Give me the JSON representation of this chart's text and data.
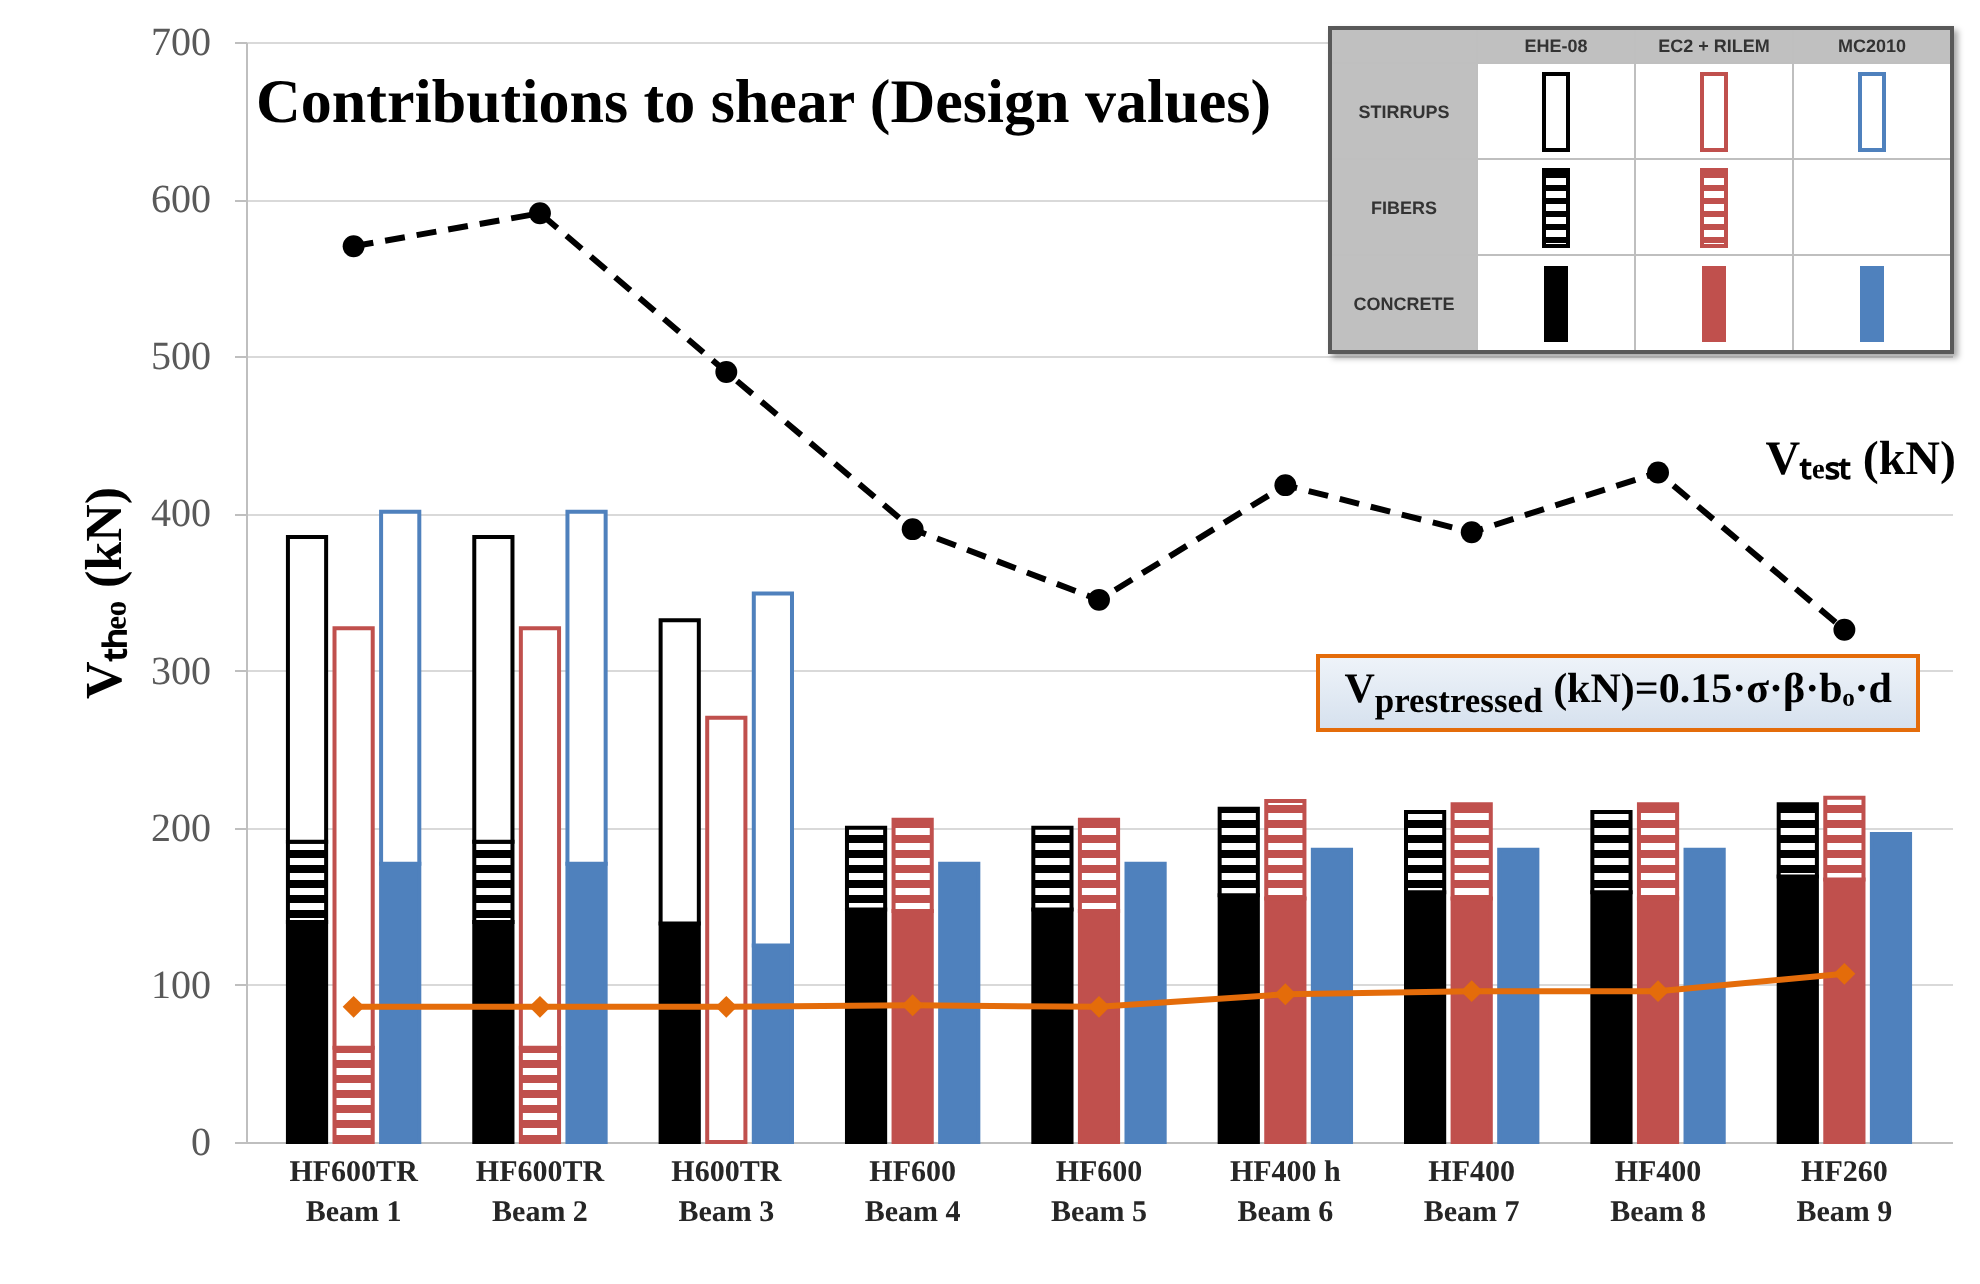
{
  "chart_data": {
    "type": "bar",
    "title": "Contributions to shear (Design values)",
    "ylabel": "Vₜₕₑₒ (kN)",
    "categories": [
      null,
      "HF600TR\nBeam 1",
      null,
      null,
      null,
      "HF600TR\nBeam 2",
      null,
      null,
      null,
      "H600TR\nBeam 3",
      null,
      null,
      null,
      "HF600\nBeam 4",
      null,
      null,
      null,
      "HF600\nBeam 5",
      null,
      null,
      null,
      "HF400 h\nBeam 6",
      null,
      null,
      null,
      "HF400\nBeam 7",
      null,
      null,
      null,
      "HF400\nBeam 8",
      null,
      null,
      null,
      "HF260\nBeam 9",
      null
    ],
    "stacked": true,
    "series": [
      {
        "colors": [
          "#000000",
          null,
          "#4f81bd",
          null,
          "#000000",
          null,
          "#4f81bd",
          null,
          "#000000",
          null,
          "#4f81bd",
          null,
          "#000000",
          "#c0504d",
          "#4f81bd",
          null,
          "#000000",
          "#c0504d",
          "#4f81bd",
          null,
          "#000000",
          "#c0504d",
          "#4f81bd",
          null,
          "#000000",
          "#c0504d",
          "#4f81bd",
          null,
          "#000000",
          "#c0504d",
          "#4f81bd",
          null,
          "#000000",
          "#c0504d",
          "#4f81bd"
        ],
        "values": [
          140,
          null,
          177,
          null,
          140,
          null,
          177,
          null,
          139,
          null,
          125,
          null,
          148,
          147,
          177,
          null,
          148,
          147,
          177,
          null,
          157,
          155,
          186,
          null,
          159,
          155,
          186,
          null,
          159,
          155,
          186,
          null,
          169,
          167,
          196
        ]
      },
      {
        "colors": [
          "#000000",
          "#c0504d",
          null,
          null,
          "#000000",
          "#c0504d",
          null,
          null,
          null,
          null,
          null,
          null,
          "#000000",
          "#c0504d",
          null,
          null,
          "#000000",
          "#c0504d",
          null,
          null,
          "#000000",
          "#c0504d",
          null,
          null,
          "#000000",
          "#c0504d",
          null,
          null,
          "#000000",
          "#c0504d",
          null,
          null,
          "#000000",
          "#c0504d",
          null
        ],
        "values": [
          51,
          60,
          null,
          null,
          51,
          60,
          null,
          null,
          null,
          null,
          null,
          null,
          52,
          58,
          null,
          null,
          52,
          58,
          null,
          null,
          55,
          62,
          null,
          null,
          51,
          60,
          null,
          null,
          51,
          60,
          null,
          null,
          46,
          52,
          null
        ]
      },
      {
        "colors": [
          "#000000",
          "#c0504d",
          "#4f81bd",
          null,
          "#000000",
          "#c0504d",
          "#4f81bd",
          null,
          "#000000",
          "#c0504d",
          "#4f81bd",
          null,
          null,
          null,
          null,
          null,
          null,
          null,
          null,
          null,
          null,
          null,
          null,
          null,
          null,
          null,
          null,
          null,
          null,
          null,
          null,
          null,
          null,
          null,
          null
        ],
        "values": [
          194,
          267,
          224,
          null,
          194,
          267,
          224,
          null,
          193,
          270,
          224,
          null,
          null,
          null,
          null,
          null,
          null,
          null,
          null,
          null,
          null,
          null,
          null,
          null,
          null,
          null,
          null,
          null,
          null,
          null,
          null,
          null,
          null,
          null,
          null
        ]
      },
      {
        "name": "Vₜₑₛₜ (kN)",
        "type": "line",
        "color": "#000000",
        "marker": "circle",
        "line_style": "dashed",
        "values": [
          null,
          570,
          null,
          null,
          null,
          591,
          null,
          null,
          null,
          490,
          null,
          null,
          null,
          390,
          null,
          null,
          null,
          345,
          null,
          null,
          null,
          418,
          null,
          null,
          null,
          388,
          null,
          null,
          null,
          426,
          null,
          null,
          null,
          326,
          null
        ]
      },
      {
        "name": "V$_{prestressed}$ (kN)=0.15·σ·β·bₒ·d",
        "type": "line",
        "color": "#e46c0a",
        "marker": "diamond",
        "line_style": "solid",
        "values": [
          null,
          86,
          null,
          null,
          null,
          86,
          null,
          null,
          null,
          86,
          null,
          null,
          null,
          87,
          null,
          null,
          null,
          86,
          null,
          null,
          null,
          94,
          null,
          null,
          null,
          96,
          null,
          null,
          null,
          96,
          null,
          null,
          null,
          107,
          null
        ]
      }
    ],
    "ylim": [
      0,
      700
    ],
    "yticks": [
      0,
      100,
      200,
      300,
      400,
      500,
      600,
      700
    ],
    "grid": "y",
    "legend": "top right",
    "annotations": [
      "EHE-08",
      "EC2 + RILEM",
      "MC2010",
      "STIRRUPS",
      "FIBERS",
      "CONCRETE"
    ]
  }
}
